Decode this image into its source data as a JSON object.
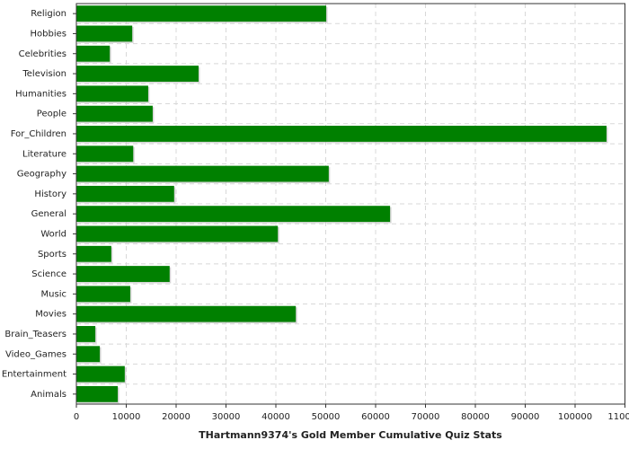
{
  "chart_data": {
    "type": "hbar",
    "xlabel": "THartmann9374's Gold Member Cumulative Quiz Stats",
    "categories": [
      "Religion",
      "Hobbies",
      "Celebrities",
      "Television",
      "Humanities",
      "People",
      "For_Children",
      "Literature",
      "Geography",
      "History",
      "General",
      "World",
      "Sports",
      "Science",
      "Music",
      "Movies",
      "Brain_Teasers",
      "Video_Games",
      "Entertainment",
      "Animals"
    ],
    "values": [
      50100,
      11200,
      6700,
      24500,
      14400,
      15300,
      106300,
      11400,
      50600,
      19600,
      62900,
      40400,
      7000,
      18700,
      10800,
      44000,
      3800,
      4700,
      9700,
      8300
    ],
    "color": "#008000",
    "xlim": [
      0,
      110000
    ],
    "xticks": [
      0,
      10000,
      20000,
      30000,
      40000,
      50000,
      60000,
      70000,
      80000,
      90000,
      100000,
      110000
    ],
    "grid": true
  }
}
